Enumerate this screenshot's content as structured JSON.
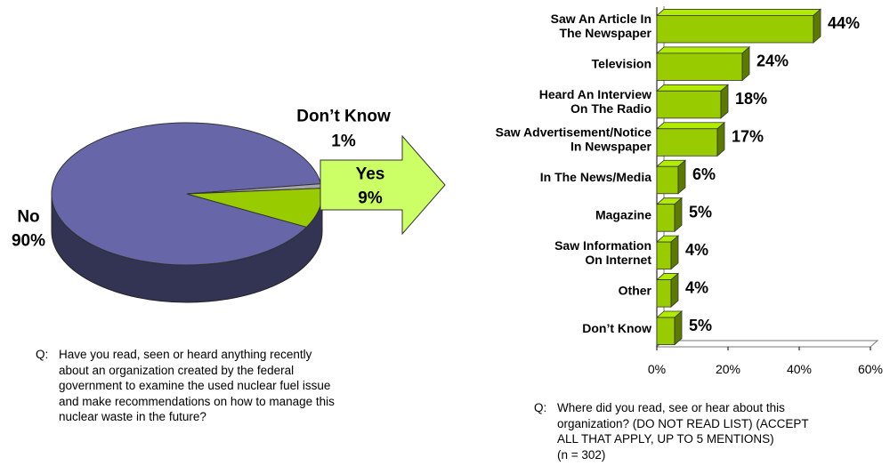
{
  "chart_data": [
    {
      "type": "pie",
      "slices": [
        {
          "label": "No",
          "value": 90,
          "display": "90%",
          "color": "#6666a8"
        },
        {
          "label": "Don’t Know",
          "value": 1,
          "display": "1%",
          "color": "#a6a6a6"
        },
        {
          "label": "Yes",
          "value": 9,
          "display": "9%",
          "color": "#99cc00"
        }
      ],
      "question": {
        "prefix": "Q:",
        "lines": [
          "Have you read, seen or heard anything recently",
          "about an organization created by the federal",
          "government to examine the used nuclear fuel issue",
          "and make recommendations on how to manage this",
          "nuclear waste in the future?"
        ]
      }
    },
    {
      "type": "bar",
      "orientation": "horizontal",
      "color": "#99cc00",
      "xlim": [
        0,
        60
      ],
      "ticks": [
        0,
        20,
        40,
        60
      ],
      "tick_labels": [
        "0%",
        "20%",
        "40%",
        "60%"
      ],
      "categories": [
        [
          "Saw An Article In",
          "The Newspaper"
        ],
        [
          "Television"
        ],
        [
          "Heard An Interview",
          "On The Radio"
        ],
        [
          "Saw Advertisement/Notice",
          "In Newspaper"
        ],
        [
          "In The News/Media"
        ],
        [
          "Magazine"
        ],
        [
          "Saw Information",
          "On Internet"
        ],
        [
          "Other"
        ],
        [
          "Don’t Know"
        ]
      ],
      "values": [
        44,
        24,
        18,
        17,
        6,
        5,
        4,
        4,
        5
      ],
      "value_labels": [
        "44%",
        "24%",
        "18%",
        "17%",
        "6%",
        "5%",
        "4%",
        "4%",
        "5%"
      ],
      "question": {
        "prefix": "Q:",
        "lines": [
          "Where did you read, see or hear about this",
          "organization? (DO NOT READ LIST) (ACCEPT",
          "ALL THAT APPLY, UP TO 5 MENTIONS)",
          "(n = 302)"
        ]
      }
    }
  ]
}
